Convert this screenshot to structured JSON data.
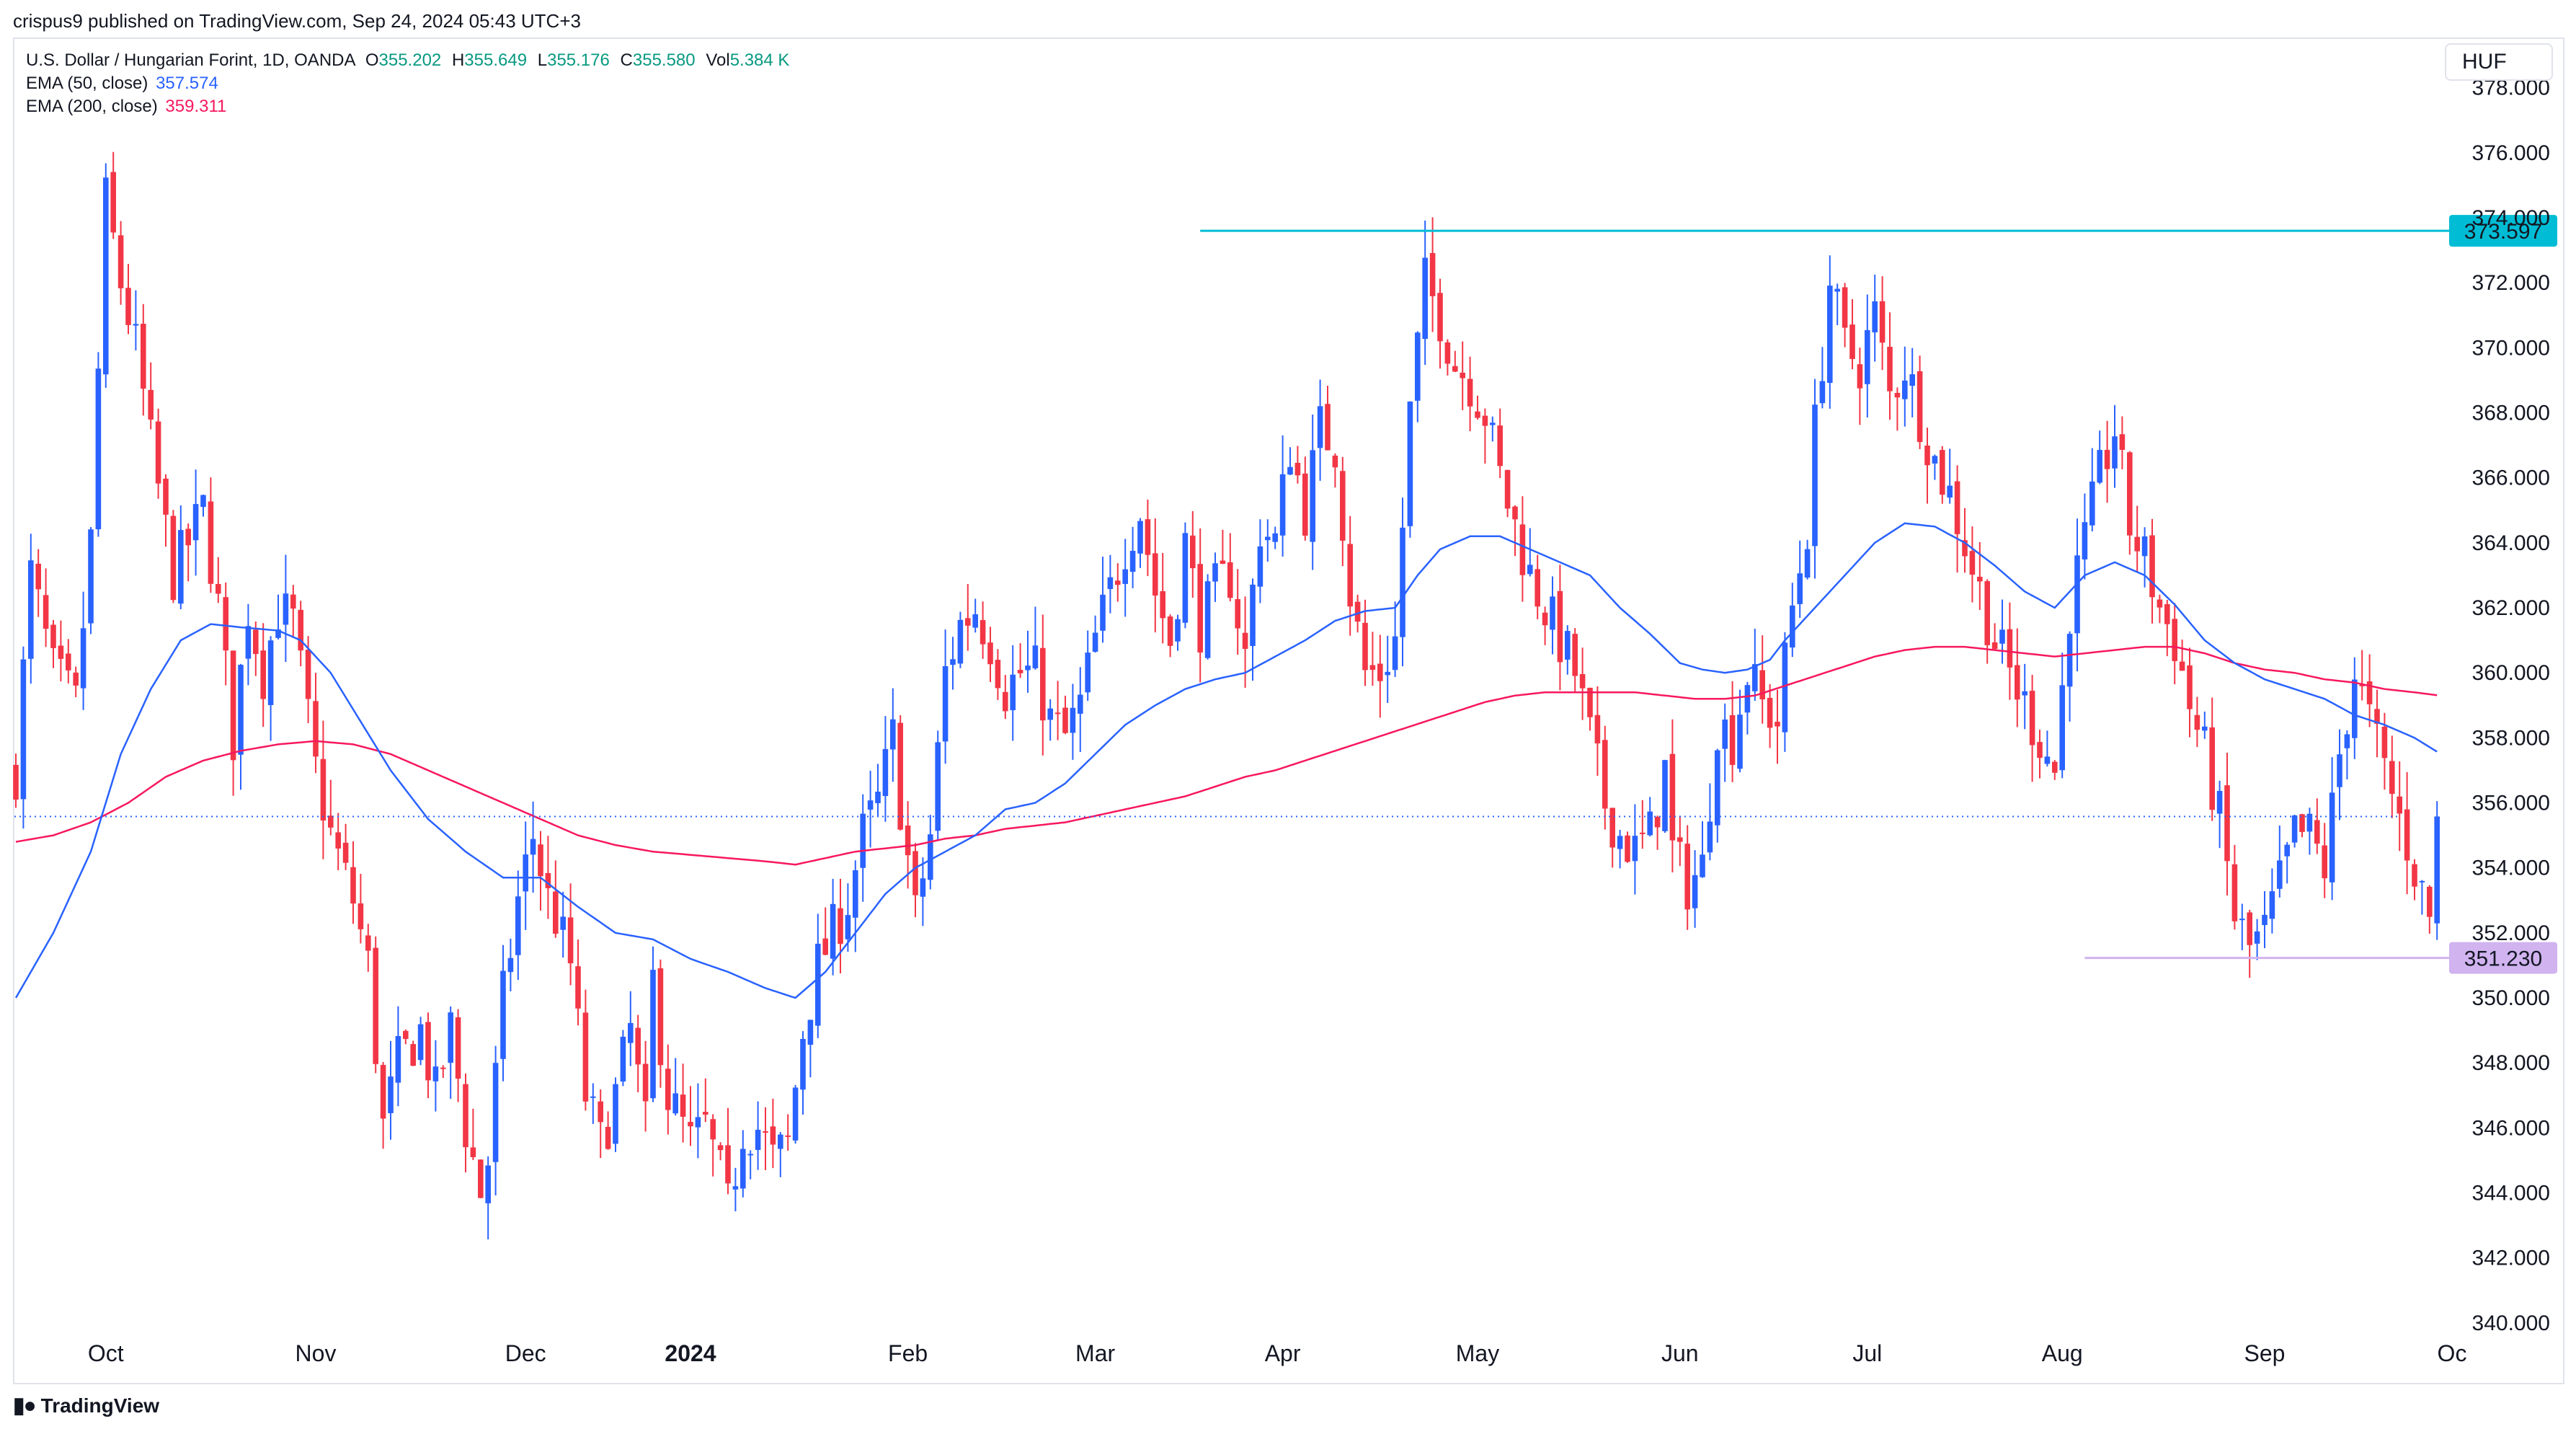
{
  "header": {
    "published": "crispus9 published on TradingView.com, Sep 24, 2024 05:43 UTC+3"
  },
  "legend": {
    "symbol": "U.S. Dollar / Hungarian Forint, 1D, OANDA",
    "o_label": "O",
    "o_value": "355.202",
    "h_label": "H",
    "h_value": "355.649",
    "l_label": "L",
    "l_value": "355.176",
    "c_label": "C",
    "c_value": "355.580",
    "vol_label": "Vol",
    "vol_value": "5.384 K",
    "ema50_label": "EMA (50, close)",
    "ema50_value": "357.574",
    "ema200_label": "EMA (200, close)",
    "ema200_value": "359.311"
  },
  "currency_button": "HUF",
  "footer": {
    "brand": "TradingView",
    "logo_icon": "tradingview-logo-icon"
  },
  "colors": {
    "up": "#2962ff",
    "down": "#f23645",
    "ema50": "#2962ff",
    "ema200": "#f7185e",
    "resistance": "#00bcd4",
    "support_label": "#d1b3f0",
    "last_price": "#2962ff"
  },
  "chart_data": {
    "type": "candlestick",
    "ylim": [
      339,
      379.5
    ],
    "y_ticks": [
      "340.000",
      "342.000",
      "344.000",
      "346.000",
      "348.000",
      "350.000",
      "352.000",
      "354.000",
      "356.000",
      "358.000",
      "360.000",
      "362.000",
      "364.000",
      "366.000",
      "368.000",
      "370.000",
      "372.000",
      "374.000",
      "376.000",
      "378.000"
    ],
    "x_ticks": [
      {
        "label": "Oct",
        "t": 12
      },
      {
        "label": "Nov",
        "t": 40
      },
      {
        "label": "Dec",
        "t": 68
      },
      {
        "label": "2024",
        "t": 90,
        "bold": true
      },
      {
        "label": "Feb",
        "t": 119
      },
      {
        "label": "Mar",
        "t": 144
      },
      {
        "label": "Apr",
        "t": 169
      },
      {
        "label": "May",
        "t": 195
      },
      {
        "label": "Jun",
        "t": 222
      },
      {
        "label": "Jul",
        "t": 247
      },
      {
        "label": "Aug",
        "t": 273
      },
      {
        "label": "Sep",
        "t": 300
      },
      {
        "label": "Oc",
        "t": 325
      }
    ],
    "resistance": {
      "value": 373.597,
      "label": "373.597",
      "t_start": 158
    },
    "support": {
      "value": 351.23,
      "label": "351.230",
      "t_start": 276
    },
    "last_price": 355.58,
    "series_keypoints": [
      [
        0,
        357.0
      ],
      [
        2,
        363.0
      ],
      [
        5,
        360.0
      ],
      [
        8,
        359.0
      ],
      [
        10,
        364.0
      ],
      [
        12,
        374.5
      ],
      [
        14,
        372.0
      ],
      [
        16,
        370.0
      ],
      [
        18,
        367.0
      ],
      [
        21,
        363.0
      ],
      [
        25,
        365.0
      ],
      [
        27,
        362.0
      ],
      [
        29,
        358.0
      ],
      [
        31,
        362.0
      ],
      [
        33,
        360.0
      ],
      [
        35,
        362.0
      ],
      [
        37,
        361.5
      ],
      [
        40,
        357.0
      ],
      [
        42,
        355.0
      ],
      [
        45,
        353.0
      ],
      [
        47,
        351.0
      ],
      [
        49,
        346.0
      ],
      [
        51,
        348.0
      ],
      [
        54,
        349.0
      ],
      [
        56,
        347.0
      ],
      [
        58,
        349.0
      ],
      [
        60,
        346.0
      ],
      [
        62,
        344.0
      ],
      [
        63,
        345.0
      ],
      [
        65,
        350.0
      ],
      [
        67,
        353.0
      ],
      [
        69,
        355.0
      ],
      [
        71,
        353.0
      ],
      [
        72,
        352.5
      ],
      [
        74,
        351.0
      ],
      [
        76,
        347.0
      ],
      [
        78,
        345.5
      ],
      [
        80,
        347.0
      ],
      [
        82,
        349.0
      ],
      [
        84,
        346.0
      ],
      [
        85,
        350.5
      ],
      [
        87,
        347.0
      ],
      [
        90,
        345.5
      ],
      [
        92,
        346.0
      ],
      [
        94,
        344.5
      ],
      [
        95,
        343.5
      ],
      [
        97,
        346.0
      ],
      [
        99,
        346.0
      ],
      [
        101,
        345.0
      ],
      [
        103,
        345.5
      ],
      [
        105,
        349.0
      ],
      [
        107,
        351.0
      ],
      [
        109,
        352.0
      ],
      [
        111,
        353.0
      ],
      [
        113,
        355.0
      ],
      [
        115,
        356.0
      ],
      [
        117,
        358.0
      ],
      [
        118,
        356.0
      ],
      [
        120,
        352.5
      ],
      [
        122,
        355.0
      ],
      [
        124,
        360.0
      ],
      [
        126,
        361.5
      ],
      [
        128,
        362.0
      ],
      [
        130,
        361.0
      ],
      [
        132,
        359.5
      ],
      [
        134,
        360.0
      ],
      [
        136,
        360.0
      ],
      [
        138,
        358.5
      ],
      [
        140,
        358.0
      ],
      [
        142,
        359.0
      ],
      [
        144,
        361.0
      ],
      [
        146,
        362.5
      ],
      [
        148,
        364.0
      ],
      [
        150,
        365.0
      ],
      [
        152,
        362.5
      ],
      [
        154,
        361.0
      ],
      [
        156,
        364.0
      ],
      [
        158,
        361.5
      ],
      [
        160,
        362.5
      ],
      [
        162,
        363.0
      ],
      [
        164,
        360.5
      ],
      [
        166,
        364.5
      ],
      [
        168,
        364.0
      ],
      [
        170,
        367.0
      ],
      [
        172,
        365.0
      ],
      [
        174,
        367.5
      ],
      [
        176,
        367.0
      ],
      [
        178,
        362.5
      ],
      [
        180,
        360.0
      ],
      [
        182,
        360.0
      ],
      [
        184,
        361.0
      ],
      [
        186,
        368.0
      ],
      [
        188,
        372.0
      ],
      [
        190,
        371.0
      ],
      [
        192,
        369.5
      ],
      [
        194,
        369.0
      ],
      [
        196,
        368.0
      ],
      [
        198,
        366.0
      ],
      [
        200,
        364.5
      ],
      [
        202,
        363.0
      ],
      [
        204,
        362.0
      ],
      [
        206,
        361.0
      ],
      [
        208,
        360.0
      ],
      [
        210,
        358.0
      ],
      [
        212,
        356.0
      ],
      [
        214,
        355.0
      ],
      [
        216,
        354.5
      ],
      [
        218,
        355.0
      ],
      [
        220,
        357.0
      ],
      [
        221,
        354.5
      ],
      [
        223,
        353.5
      ],
      [
        225,
        354.0
      ],
      [
        227,
        358.5
      ],
      [
        229,
        358.0
      ],
      [
        231,
        360.0
      ],
      [
        233,
        359.0
      ],
      [
        235,
        358.5
      ],
      [
        237,
        362.0
      ],
      [
        239,
        364.5
      ],
      [
        240,
        367.5
      ],
      [
        242,
        372.0
      ],
      [
        244,
        370.0
      ],
      [
        246,
        369.5
      ],
      [
        248,
        371.0
      ],
      [
        250,
        368.5
      ],
      [
        252,
        369.5
      ],
      [
        254,
        368.0
      ],
      [
        256,
        366.5
      ],
      [
        258,
        365.5
      ],
      [
        260,
        364.0
      ],
      [
        262,
        362.5
      ],
      [
        264,
        361.0
      ],
      [
        266,
        360.0
      ],
      [
        268,
        359.0
      ],
      [
        270,
        358.0
      ],
      [
        272,
        357.0
      ],
      [
        274,
        362.0
      ],
      [
        276,
        364.0
      ],
      [
        278,
        366.0
      ],
      [
        280,
        367.5
      ],
      [
        282,
        364.5
      ],
      [
        284,
        363.5
      ],
      [
        286,
        362.0
      ],
      [
        288,
        361.0
      ],
      [
        290,
        359.0
      ],
      [
        292,
        357.5
      ],
      [
        294,
        355.5
      ],
      [
        296,
        352.5
      ],
      [
        298,
        351.5
      ],
      [
        300,
        352.0
      ],
      [
        302,
        353.5
      ],
      [
        304,
        355.0
      ],
      [
        306,
        355.0
      ],
      [
        308,
        354.0
      ],
      [
        310,
        357.5
      ],
      [
        312,
        360.0
      ],
      [
        314,
        358.5
      ],
      [
        316,
        357.0
      ],
      [
        318,
        355.5
      ],
      [
        320,
        354.0
      ],
      [
        322,
        352.5
      ],
      [
        323,
        355.5
      ]
    ],
    "ema50_keypoints": [
      [
        0,
        350.0
      ],
      [
        5,
        352.0
      ],
      [
        10,
        354.5
      ],
      [
        14,
        357.5
      ],
      [
        18,
        359.5
      ],
      [
        22,
        361.0
      ],
      [
        26,
        361.5
      ],
      [
        30,
        361.4
      ],
      [
        35,
        361.3
      ],
      [
        38,
        361.0
      ],
      [
        42,
        360.0
      ],
      [
        46,
        358.5
      ],
      [
        50,
        357.0
      ],
      [
        55,
        355.5
      ],
      [
        60,
        354.5
      ],
      [
        65,
        353.7
      ],
      [
        70,
        353.7
      ],
      [
        75,
        352.8
      ],
      [
        80,
        352.0
      ],
      [
        85,
        351.8
      ],
      [
        90,
        351.2
      ],
      [
        95,
        350.8
      ],
      [
        100,
        350.3
      ],
      [
        104,
        350.0
      ],
      [
        108,
        350.8
      ],
      [
        112,
        352.0
      ],
      [
        116,
        353.2
      ],
      [
        120,
        354.0
      ],
      [
        124,
        354.5
      ],
      [
        128,
        355.0
      ],
      [
        132,
        355.8
      ],
      [
        136,
        356.0
      ],
      [
        140,
        356.6
      ],
      [
        144,
        357.5
      ],
      [
        148,
        358.4
      ],
      [
        152,
        359.0
      ],
      [
        156,
        359.5
      ],
      [
        160,
        359.8
      ],
      [
        164,
        360.0
      ],
      [
        168,
        360.5
      ],
      [
        172,
        361.0
      ],
      [
        176,
        361.6
      ],
      [
        180,
        361.9
      ],
      [
        184,
        362.0
      ],
      [
        187,
        363.0
      ],
      [
        190,
        363.8
      ],
      [
        194,
        364.2
      ],
      [
        198,
        364.2
      ],
      [
        202,
        363.8
      ],
      [
        206,
        363.4
      ],
      [
        210,
        363.0
      ],
      [
        214,
        362.0
      ],
      [
        218,
        361.2
      ],
      [
        222,
        360.3
      ],
      [
        225,
        360.1
      ],
      [
        228,
        360.0
      ],
      [
        231,
        360.1
      ],
      [
        234,
        360.4
      ],
      [
        236,
        361.0
      ],
      [
        240,
        362.0
      ],
      [
        244,
        363.0
      ],
      [
        248,
        364.0
      ],
      [
        252,
        364.6
      ],
      [
        256,
        364.5
      ],
      [
        260,
        364.0
      ],
      [
        264,
        363.3
      ],
      [
        268,
        362.5
      ],
      [
        272,
        362.0
      ],
      [
        276,
        363.0
      ],
      [
        280,
        363.4
      ],
      [
        284,
        363.0
      ],
      [
        288,
        362.1
      ],
      [
        292,
        361.0
      ],
      [
        296,
        360.3
      ],
      [
        300,
        359.8
      ],
      [
        304,
        359.5
      ],
      [
        308,
        359.2
      ],
      [
        312,
        358.7
      ],
      [
        316,
        358.4
      ],
      [
        320,
        358.0
      ],
      [
        323,
        357.574
      ]
    ],
    "ema200_keypoints": [
      [
        0,
        354.8
      ],
      [
        5,
        355.0
      ],
      [
        10,
        355.4
      ],
      [
        15,
        356.0
      ],
      [
        20,
        356.8
      ],
      [
        25,
        357.3
      ],
      [
        30,
        357.6
      ],
      [
        35,
        357.8
      ],
      [
        40,
        357.9
      ],
      [
        45,
        357.8
      ],
      [
        50,
        357.5
      ],
      [
        55,
        357.0
      ],
      [
        60,
        356.5
      ],
      [
        65,
        356.0
      ],
      [
        70,
        355.5
      ],
      [
        75,
        355.0
      ],
      [
        80,
        354.7
      ],
      [
        85,
        354.5
      ],
      [
        90,
        354.4
      ],
      [
        95,
        354.3
      ],
      [
        100,
        354.2
      ],
      [
        104,
        354.1
      ],
      [
        108,
        354.3
      ],
      [
        112,
        354.5
      ],
      [
        116,
        354.6
      ],
      [
        120,
        354.7
      ],
      [
        124,
        354.9
      ],
      [
        128,
        355.0
      ],
      [
        132,
        355.2
      ],
      [
        136,
        355.3
      ],
      [
        140,
        355.4
      ],
      [
        144,
        355.6
      ],
      [
        148,
        355.8
      ],
      [
        152,
        356.0
      ],
      [
        156,
        356.2
      ],
      [
        160,
        356.5
      ],
      [
        164,
        356.8
      ],
      [
        168,
        357.0
      ],
      [
        172,
        357.3
      ],
      [
        176,
        357.6
      ],
      [
        180,
        357.9
      ],
      [
        184,
        358.2
      ],
      [
        188,
        358.5
      ],
      [
        192,
        358.8
      ],
      [
        196,
        359.1
      ],
      [
        200,
        359.3
      ],
      [
        204,
        359.4
      ],
      [
        208,
        359.4
      ],
      [
        212,
        359.4
      ],
      [
        216,
        359.4
      ],
      [
        220,
        359.3
      ],
      [
        224,
        359.2
      ],
      [
        228,
        359.2
      ],
      [
        232,
        359.3
      ],
      [
        236,
        359.6
      ],
      [
        240,
        359.9
      ],
      [
        244,
        360.2
      ],
      [
        248,
        360.5
      ],
      [
        252,
        360.7
      ],
      [
        256,
        360.8
      ],
      [
        260,
        360.8
      ],
      [
        264,
        360.7
      ],
      [
        268,
        360.6
      ],
      [
        272,
        360.5
      ],
      [
        276,
        360.6
      ],
      [
        280,
        360.7
      ],
      [
        284,
        360.8
      ],
      [
        288,
        360.8
      ],
      [
        292,
        360.6
      ],
      [
        296,
        360.3
      ],
      [
        300,
        360.1
      ],
      [
        304,
        360.0
      ],
      [
        308,
        359.8
      ],
      [
        312,
        359.7
      ],
      [
        316,
        359.5
      ],
      [
        320,
        359.4
      ],
      [
        323,
        359.311
      ]
    ]
  }
}
